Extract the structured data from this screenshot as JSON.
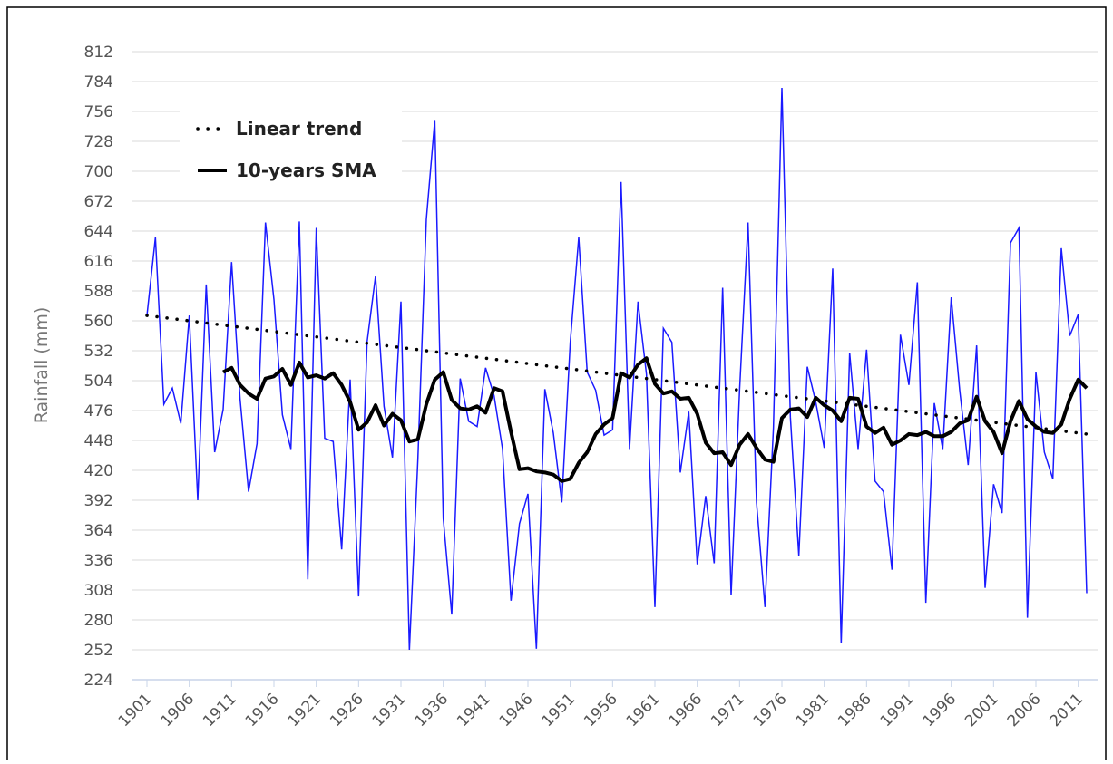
{
  "chart_data": {
    "type": "line",
    "y_label": "Rainfall (mm)",
    "x": [
      1901,
      1902,
      1903,
      1904,
      1905,
      1906,
      1907,
      1908,
      1909,
      1910,
      1911,
      1912,
      1913,
      1914,
      1915,
      1916,
      1917,
      1918,
      1919,
      1920,
      1921,
      1922,
      1923,
      1924,
      1925,
      1926,
      1927,
      1928,
      1929,
      1930,
      1931,
      1932,
      1933,
      1934,
      1935,
      1936,
      1937,
      1938,
      1939,
      1940,
      1941,
      1942,
      1943,
      1944,
      1945,
      1946,
      1947,
      1948,
      1949,
      1950,
      1951,
      1952,
      1953,
      1954,
      1955,
      1956,
      1957,
      1958,
      1959,
      1960,
      1961,
      1962,
      1963,
      1964,
      1965,
      1966,
      1967,
      1968,
      1969,
      1970,
      1971,
      1972,
      1973,
      1974,
      1975,
      1976,
      1977,
      1978,
      1979,
      1980,
      1981,
      1982,
      1983,
      1984,
      1985,
      1986,
      1987,
      1988,
      1989,
      1990,
      1991,
      1992,
      1993,
      1994,
      1995,
      1996,
      1997,
      1998,
      1999,
      2000,
      2001,
      2002,
      2003,
      2004,
      2005,
      2006,
      2007,
      2008,
      2009,
      2010,
      2011,
      2012
    ],
    "series": [
      {
        "color": "#1a1aff",
        "style": "thin",
        "values": [
          565,
          638,
          482,
          497,
          464,
          565,
          392,
          594,
          437,
          477,
          615,
          487,
          400,
          445,
          652,
          580,
          472,
          440,
          653,
          318,
          647,
          450,
          447,
          346,
          505,
          302,
          540,
          602,
          480,
          432,
          578,
          252,
          430,
          655,
          748,
          375,
          285,
          506,
          466,
          461,
          516,
          490,
          440,
          298,
          370,
          398,
          253,
          496,
          455,
          390,
          540,
          638,
          512,
          495,
          453,
          458,
          690,
          440,
          578,
          510,
          292,
          553,
          540,
          418,
          475,
          332,
          396,
          333,
          591,
          303,
          495,
          652,
          390,
          292,
          460,
          778,
          470,
          340,
          517,
          484,
          441,
          609,
          258,
          530,
          440,
          533,
          410,
          400,
          327,
          547,
          500,
          596,
          296,
          483,
          440,
          582,
          495,
          425,
          537,
          310,
          407,
          380,
          633,
          647,
          282,
          512,
          437,
          412,
          628,
          546,
          566,
          305
        ]
      },
      {
        "name": "10-years SMA",
        "color": "#000000",
        "style": "thick",
        "values": [
          null,
          null,
          null,
          null,
          null,
          null,
          null,
          null,
          null,
          512,
          516,
          500,
          492,
          487,
          506,
          508,
          515,
          500,
          521,
          507,
          509,
          506,
          511,
          500,
          484,
          458,
          465,
          481,
          462,
          473,
          467,
          447,
          449,
          482,
          505,
          512,
          486,
          478,
          477,
          480,
          474,
          497,
          494,
          456,
          421,
          422,
          419,
          418,
          416,
          410,
          412,
          427,
          437,
          454,
          463,
          469,
          511,
          507,
          519,
          525,
          501,
          492,
          494,
          487,
          488,
          473,
          446,
          436,
          437,
          425,
          444,
          454,
          441,
          430,
          428,
          469,
          477,
          478,
          470,
          488,
          481,
          476,
          466,
          488,
          487,
          461,
          455,
          460,
          444,
          448,
          454,
          453,
          456,
          452,
          452,
          456,
          464,
          467,
          489,
          466,
          456,
          436,
          466,
          485,
          468,
          461,
          456,
          455,
          463,
          487,
          505,
          497
        ]
      },
      {
        "name": "Linear trend",
        "color": "#000000",
        "style": "dotted",
        "x": [
          1901,
          2012
        ],
        "values": [
          565,
          454
        ]
      }
    ],
    "xlim": [
      1901,
      2012
    ],
    "xticks": [
      1901,
      1906,
      1911,
      1916,
      1921,
      1926,
      1931,
      1936,
      1941,
      1946,
      1951,
      1956,
      1961,
      1966,
      1971,
      1976,
      1981,
      1986,
      1991,
      1996,
      2001,
      2006,
      2011
    ],
    "ylim": [
      224,
      812
    ],
    "yticks": [
      224,
      252,
      280,
      308,
      336,
      364,
      392,
      420,
      448,
      476,
      504,
      532,
      560,
      588,
      616,
      644,
      672,
      700,
      728,
      756,
      784,
      812
    ],
    "grid": true,
    "legend": "upper left"
  }
}
